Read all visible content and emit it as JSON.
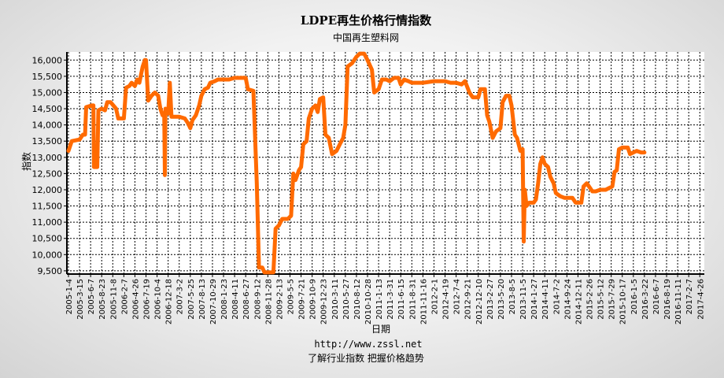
{
  "chart_data": {
    "type": "line",
    "title": "LDPE再生价格行情指数",
    "subtitle": "中国再生塑料网",
    "xlabel": "日期",
    "ylabel": "指数",
    "footer_url": "http://www.zssl.net",
    "footer_slogan": "了解行业指数   把握价格趋势",
    "ylim": [
      9400,
      16250
    ],
    "yticks": [
      9500,
      10000,
      10500,
      11000,
      11500,
      12000,
      12500,
      13000,
      13500,
      14000,
      14500,
      15000,
      15500,
      16000
    ],
    "ytick_labels": [
      "9,500",
      "10,000",
      "10,500",
      "11,000",
      "11,500",
      "12,000",
      "12,500",
      "13,000",
      "13,500",
      "14,000",
      "14,500",
      "15,000",
      "15,500",
      "16,000"
    ],
    "x_labels": [
      "2005-1-4",
      "2005-3-15",
      "2005-6-7",
      "2005-8-23",
      "2005-11-8",
      "2006-2-7",
      "2006-4-26",
      "2006-7-19",
      "2006-10-4",
      "2006-12-18",
      "2007-3-2",
      "2007-5-25",
      "2007-8-13",
      "2007-10-29",
      "2008-1-23",
      "2008-4-11",
      "2008-6-27",
      "2008-9-12",
      "2008-11-28",
      "2009-2-13",
      "2009-5-5",
      "2009-7-21",
      "2009-10-9",
      "2009-12-23",
      "2010-3-11",
      "2010-5-27",
      "2010-8-12",
      "2010-10-28",
      "2011-1-13",
      "2011-3-31",
      "2011-6-15",
      "2011-8-31",
      "2011-11-16",
      "2012-2-1",
      "2012-4-19",
      "2012-7-4",
      "2012-9-21",
      "2012-12-10",
      "2013-2-27",
      "2013-5-20",
      "2013-8-5",
      "2013-11-5",
      "2014-1-27",
      "2014-4-11",
      "2014-7-2",
      "2014-9-24",
      "2014-12-11",
      "2015-2-26",
      "2015-5-12",
      "2015-7-29",
      "2015-10-17",
      "2016-1-5",
      "2016-3-22",
      "2016-6-7",
      "2016-8-19",
      "2016-11-11",
      "2017-2-7",
      "2017-4-26"
    ],
    "x_label_count": 58,
    "series": [
      {
        "color": "#ff6a00",
        "points": [
          [
            0,
            13200
          ],
          [
            0.3,
            13500
          ],
          [
            1,
            13550
          ],
          [
            1.3,
            13700
          ],
          [
            1.5,
            13700
          ],
          [
            1.6,
            14550
          ],
          [
            2.1,
            14600
          ],
          [
            2.25,
            14600
          ],
          [
            2.3,
            12700
          ],
          [
            2.6,
            12700
          ],
          [
            2.7,
            14450
          ],
          [
            3,
            14500
          ],
          [
            3.3,
            14450
          ],
          [
            3.5,
            14700
          ],
          [
            3.8,
            14700
          ],
          [
            4.3,
            14500
          ],
          [
            4.5,
            14200
          ],
          [
            5,
            14200
          ],
          [
            5.2,
            15150
          ],
          [
            5.5,
            15200
          ],
          [
            5.7,
            15300
          ],
          [
            6,
            15200
          ],
          [
            6.2,
            15400
          ],
          [
            6.4,
            15300
          ],
          [
            6.7,
            15800
          ],
          [
            6.9,
            16000
          ],
          [
            7,
            16000
          ],
          [
            7.2,
            14750
          ],
          [
            7.5,
            14900
          ],
          [
            7.8,
            15000
          ],
          [
            8.1,
            14900
          ],
          [
            8.3,
            14500
          ],
          [
            8.5,
            14300
          ],
          [
            8.65,
            14300
          ],
          [
            8.7,
            12450
          ],
          [
            8.75,
            14500
          ],
          [
            8.9,
            14400
          ],
          [
            9.0,
            14350
          ],
          [
            9.15,
            15300
          ],
          [
            9.3,
            14250
          ],
          [
            10,
            14250
          ],
          [
            10.5,
            14200
          ],
          [
            10.8,
            14050
          ],
          [
            11,
            13900
          ],
          [
            11.2,
            14150
          ],
          [
            11.5,
            14300
          ],
          [
            11.8,
            14600
          ],
          [
            12,
            14900
          ],
          [
            12.3,
            15100
          ],
          [
            12.6,
            15150
          ],
          [
            12.8,
            15300
          ],
          [
            13.2,
            15350
          ],
          [
            13.5,
            15400
          ],
          [
            14,
            15400
          ],
          [
            14.5,
            15400
          ],
          [
            15,
            15450
          ],
          [
            15.5,
            15450
          ],
          [
            16,
            15450
          ],
          [
            16.2,
            15100
          ],
          [
            16.7,
            15050
          ],
          [
            17,
            12200
          ],
          [
            17.2,
            9600
          ],
          [
            17.5,
            9600
          ],
          [
            17.7,
            9450
          ],
          [
            18.2,
            9450
          ],
          [
            18.5,
            9450
          ],
          [
            18.7,
            10800
          ],
          [
            19,
            10900
          ],
          [
            19.3,
            11100
          ],
          [
            19.8,
            11100
          ],
          [
            20.1,
            11200
          ],
          [
            20.3,
            12500
          ],
          [
            20.5,
            12300
          ],
          [
            20.8,
            12600
          ],
          [
            21,
            12700
          ],
          [
            21.2,
            13400
          ],
          [
            21.5,
            13500
          ],
          [
            21.7,
            14200
          ],
          [
            22,
            14500
          ],
          [
            22.3,
            14600
          ],
          [
            22.5,
            14400
          ],
          [
            22.7,
            14800
          ],
          [
            23,
            14850
          ],
          [
            23.2,
            13700
          ],
          [
            23.5,
            13600
          ],
          [
            23.8,
            13100
          ],
          [
            24.2,
            13200
          ],
          [
            24.5,
            13400
          ],
          [
            24.8,
            13600
          ],
          [
            25,
            14000
          ],
          [
            25.2,
            15800
          ],
          [
            25.6,
            15900
          ],
          [
            26,
            16100
          ],
          [
            26.3,
            16200
          ],
          [
            26.7,
            16200
          ],
          [
            27,
            16000
          ],
          [
            27.4,
            15700
          ],
          [
            27.6,
            15000
          ],
          [
            28,
            15100
          ],
          [
            28.3,
            15400
          ],
          [
            28.7,
            15400
          ],
          [
            29,
            15350
          ],
          [
            29.4,
            15450
          ],
          [
            29.8,
            15450
          ],
          [
            30,
            15250
          ],
          [
            30.3,
            15400
          ],
          [
            30.7,
            15350
          ],
          [
            31,
            15300
          ],
          [
            32,
            15300
          ],
          [
            33,
            15350
          ],
          [
            34,
            15350
          ],
          [
            34.5,
            15300
          ],
          [
            35,
            15300
          ],
          [
            35.5,
            15250
          ],
          [
            35.8,
            15350
          ],
          [
            36.2,
            15000
          ],
          [
            36.5,
            14850
          ],
          [
            37,
            14850
          ],
          [
            37.2,
            15100
          ],
          [
            37.6,
            15100
          ],
          [
            37.8,
            14300
          ],
          [
            38.0,
            14100
          ],
          [
            38.3,
            13600
          ],
          [
            38.6,
            13800
          ],
          [
            39,
            13900
          ],
          [
            39.2,
            14700
          ],
          [
            39.5,
            14900
          ],
          [
            39.8,
            14900
          ],
          [
            40,
            14600
          ],
          [
            40.3,
            13700
          ],
          [
            40.5,
            13600
          ],
          [
            40.8,
            13200
          ],
          [
            41,
            13250
          ],
          [
            41.1,
            10400
          ],
          [
            41.2,
            12000
          ],
          [
            41.35,
            11500
          ],
          [
            41.6,
            11600
          ],
          [
            42,
            11600
          ],
          [
            42.2,
            11700
          ],
          [
            42.4,
            12200
          ],
          [
            42.6,
            12800
          ],
          [
            42.8,
            13000
          ],
          [
            43,
            12800
          ],
          [
            43.3,
            12700
          ],
          [
            43.5,
            12400
          ],
          [
            43.8,
            12200
          ],
          [
            44,
            11900
          ],
          [
            44.4,
            11800
          ],
          [
            44.8,
            11750
          ],
          [
            45.2,
            11750
          ],
          [
            45.5,
            11750
          ],
          [
            45.8,
            11600
          ],
          [
            46.3,
            11600
          ],
          [
            46.5,
            12100
          ],
          [
            46.8,
            12200
          ],
          [
            47,
            12100
          ],
          [
            47.3,
            11950
          ],
          [
            47.6,
            11950
          ],
          [
            48,
            12000
          ],
          [
            48.5,
            12000
          ],
          [
            48.8,
            12050
          ],
          [
            49.1,
            12100
          ],
          [
            49.3,
            12550
          ],
          [
            49.5,
            12600
          ],
          [
            49.7,
            13250
          ],
          [
            50,
            13300
          ],
          [
            50.5,
            13300
          ],
          [
            50.7,
            13100
          ],
          [
            51,
            13150
          ],
          [
            51.3,
            13200
          ],
          [
            51.7,
            13150
          ],
          [
            52,
            13150
          ]
        ]
      }
    ]
  }
}
